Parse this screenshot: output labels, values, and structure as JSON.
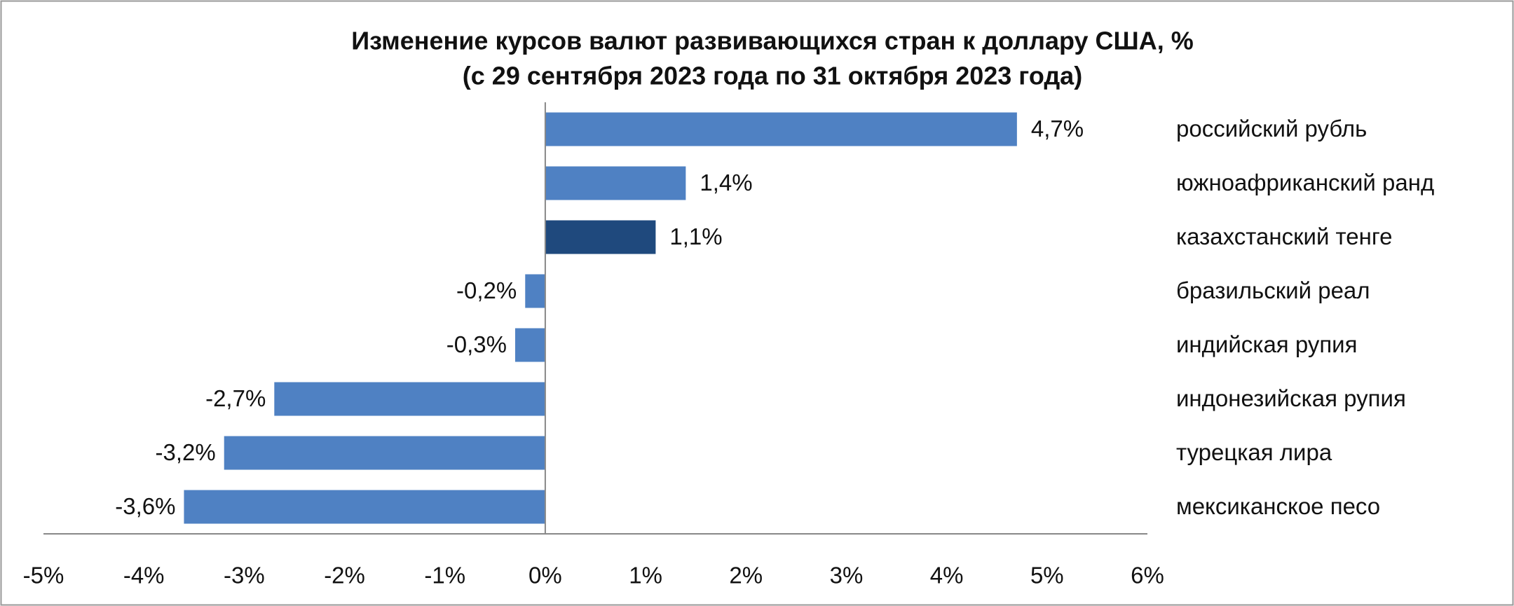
{
  "chart_data": {
    "type": "barh",
    "title": "Изменение курсов валют развивающихся стран к доллару США, %",
    "subtitle": "(с 29 сентября 2023 года по 31 октября 2023 года)",
    "categories": [
      "российский рубль",
      "южноафриканский ранд",
      "казахстанский тенге",
      "бразильский реал",
      "индийская рупия",
      "индонезийская рупия",
      "турецкая лира",
      "мексиканское песо"
    ],
    "values": [
      4.7,
      1.4,
      1.1,
      -0.2,
      -0.3,
      -2.7,
      -3.2,
      -3.6
    ],
    "value_labels": [
      "4,7%",
      "1,4%",
      "1,1%",
      "-0,2%",
      "-0,3%",
      "-2,7%",
      "-3,2%",
      "-3,6%"
    ],
    "colors": [
      "#4f81c3",
      "#4f81c3",
      "#1f497d",
      "#4f81c3",
      "#4f81c3",
      "#4f81c3",
      "#4f81c3",
      "#4f81c3"
    ],
    "xlim": [
      -5,
      6
    ],
    "xticks": [
      {
        "value": -5,
        "label": "-5%"
      },
      {
        "value": -4,
        "label": "-4%"
      },
      {
        "value": -3,
        "label": "-3%"
      },
      {
        "value": -2,
        "label": "-2%"
      },
      {
        "value": -1,
        "label": "-1%"
      },
      {
        "value": 0,
        "label": "0%"
      },
      {
        "value": 1,
        "label": "1%"
      },
      {
        "value": 2,
        "label": "2%"
      },
      {
        "value": 3,
        "label": "3%"
      },
      {
        "value": 4,
        "label": "4%"
      },
      {
        "value": 5,
        "label": "5%"
      },
      {
        "value": 6,
        "label": "6%"
      }
    ],
    "grid": false
  }
}
